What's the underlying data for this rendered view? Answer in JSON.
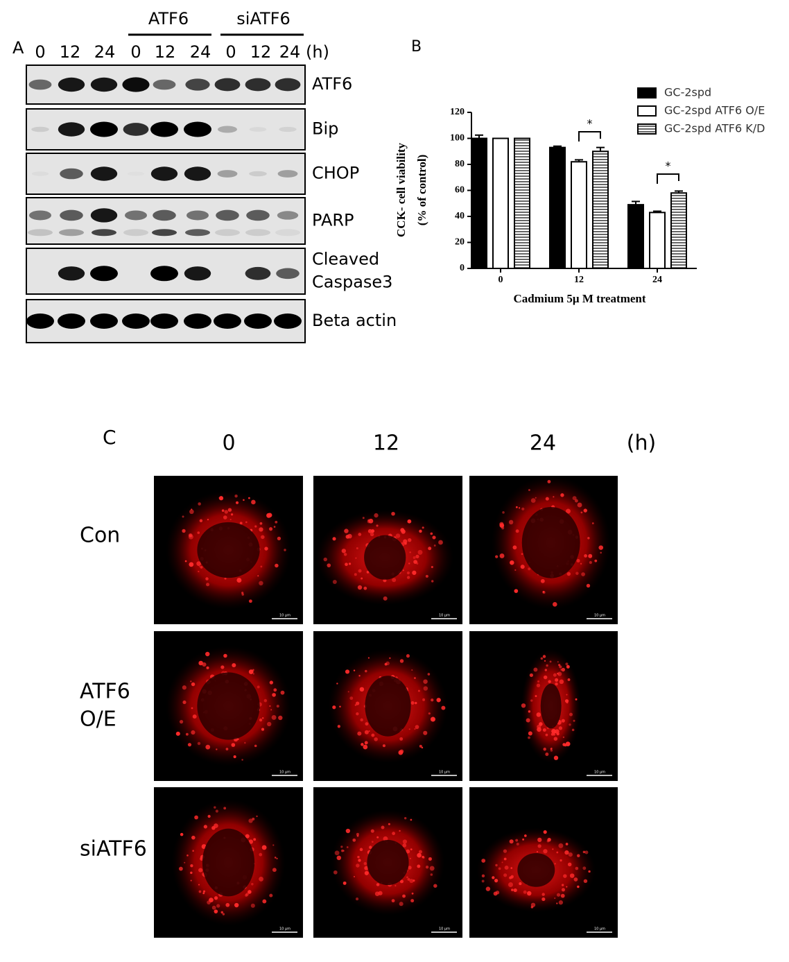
{
  "panel_a": {
    "label": "A",
    "groups": [
      "ATF6",
      "siATF6"
    ],
    "times": [
      "0",
      "12",
      "24",
      "0",
      "12",
      "24",
      "0",
      "12",
      "24"
    ],
    "unit": "(h)",
    "blots": [
      [
        "ATF6"
      ],
      [
        "Bip"
      ],
      [
        "CHOP"
      ],
      [
        "PARP"
      ],
      [
        "Cleaved",
        "Caspase3"
      ],
      [
        "Beta actin"
      ]
    ]
  },
  "panel_b": {
    "label": "B"
  },
  "chart_data": {
    "type": "bar",
    "ylabel": [
      "CCK- cell viability",
      "(% of control)"
    ],
    "xlabel": "Cadmium 5μ M treatment",
    "categories": [
      "0",
      "12",
      "24"
    ],
    "series": [
      {
        "name": "GC-2spd",
        "color": "#000000",
        "values": [
          100,
          93,
          49
        ],
        "errors": [
          2.5,
          1,
          2.5
        ]
      },
      {
        "name": "GC-2spd ATF6 O/E",
        "color": "#ffffff",
        "values": [
          100,
          82,
          43
        ],
        "errors": [
          0,
          1.5,
          1
        ]
      },
      {
        "name": "GC-2spd ATF6 K/D",
        "color": "striped",
        "values": [
          100,
          90,
          58
        ],
        "errors": [
          0,
          3,
          1.5
        ]
      }
    ],
    "ylim": [
      0,
      120
    ],
    "yticks": [
      0,
      20,
      40,
      60,
      80,
      100,
      120
    ],
    "annotations": [
      "*",
      "*"
    ]
  },
  "panel_c": {
    "label": "C",
    "columns": [
      "0",
      "12",
      "24"
    ],
    "unit": "(h)",
    "rows": [
      [
        "Con"
      ],
      [
        "ATF6",
        "O/E"
      ],
      [
        "siATF6"
      ]
    ],
    "scale_bar": "10 μm"
  }
}
